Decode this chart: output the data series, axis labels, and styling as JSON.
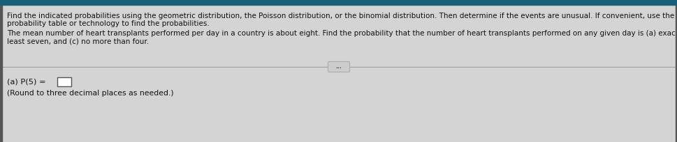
{
  "bg_top_bar": "#1a5f7a",
  "bg_color": "#d4d4d4",
  "panel_color": "#d4d4d4",
  "text_color": "#111111",
  "line_color": "#999999",
  "left_bar_color": "#555555",
  "para1_line1": "Find the indicated probabilities using the geometric distribution, the Poisson distribution, or the binomial distribution. Then determine if the events are unusual. If convenient, use the appropriate",
  "para1_line2": "probability table or technology to find the probabilities.",
  "para2_line1": "The mean number of heart transplants performed per day in a country is about eight. Find the probability that the number of heart transplants performed on any given day is (a) exactly five, (b) at",
  "para2_line2": "least seven, and (c) no more than four.",
  "answer_label": "(a) P(5) = ",
  "answer_note": "(Round to three decimal places as needed.)",
  "divider_dots": "...",
  "font_size_para": 7.5,
  "font_size_answer": 8.2,
  "font_size_note": 7.8
}
